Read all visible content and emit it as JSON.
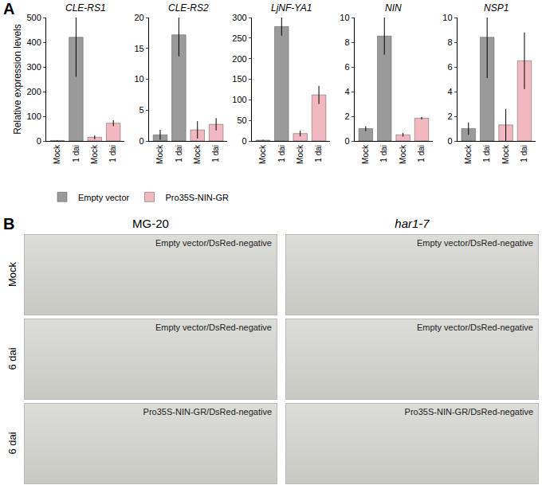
{
  "panel_a_label": "A",
  "chart_data": [
    {
      "type": "bar",
      "title": "CLE-RS1",
      "y_label": "Relative expression levels",
      "legend": "bottom",
      "categories": [
        "Mock",
        "1 dai",
        "Mock",
        "1 dai"
      ],
      "series": [
        {
          "name": "Empty vector",
          "color": "#9a9a9a",
          "values": [
            2,
            420,
            null,
            null
          ],
          "errors": [
            1,
            160,
            null,
            null
          ]
        },
        {
          "name": "Pro35S-NIN-GR",
          "color": "#f2b8c0",
          "values": [
            null,
            null,
            15,
            72
          ],
          "errors": [
            null,
            null,
            8,
            12
          ]
        }
      ],
      "ylim": [
        0,
        500
      ],
      "yticks": [
        0,
        100,
        200,
        300,
        400,
        500
      ]
    },
    {
      "type": "bar",
      "title": "CLE-RS2",
      "categories": [
        "Mock",
        "1 dai",
        "Mock",
        "1 dai"
      ],
      "series": [
        {
          "name": "Empty vector",
          "color": "#9a9a9a",
          "values": [
            1,
            17.2,
            null,
            null
          ],
          "errors": [
            0.8,
            3.5,
            null,
            null
          ]
        },
        {
          "name": "Pro35S-NIN-GR",
          "color": "#f2b8c0",
          "values": [
            null,
            null,
            1.8,
            2.7
          ],
          "errors": [
            null,
            null,
            1.4,
            1
          ]
        }
      ],
      "ylim": [
        0,
        20
      ],
      "yticks": [
        0,
        5,
        10,
        15,
        20
      ]
    },
    {
      "type": "bar",
      "title": "LjNF-YA1",
      "categories": [
        "Mock",
        "1 dai",
        "Mock",
        "1 dai"
      ],
      "series": [
        {
          "name": "Empty vector",
          "color": "#9a9a9a",
          "values": [
            2,
            278,
            null,
            null
          ],
          "errors": [
            1,
            22,
            null,
            null
          ]
        },
        {
          "name": "Pro35S-NIN-GR",
          "color": "#f2b8c0",
          "values": [
            null,
            null,
            18,
            112
          ],
          "errors": [
            null,
            null,
            7,
            22
          ]
        }
      ],
      "ylim": [
        0,
        300
      ],
      "yticks": [
        0,
        50,
        100,
        150,
        200,
        250,
        300
      ]
    },
    {
      "type": "bar",
      "title": "NIN",
      "categories": [
        "Mock",
        "1 dai",
        "Mock",
        "1 dai"
      ],
      "series": [
        {
          "name": "Empty vector",
          "color": "#9a9a9a",
          "values": [
            1,
            8.5,
            null,
            null
          ],
          "errors": [
            0.2,
            1.5,
            null,
            null
          ]
        },
        {
          "name": "Pro35S-NIN-GR",
          "color": "#f2b8c0",
          "values": [
            null,
            null,
            0.5,
            1.85
          ],
          "errors": [
            null,
            null,
            0.15,
            0.1
          ]
        }
      ],
      "ylim": [
        0,
        10
      ],
      "yticks": [
        0,
        2,
        4,
        6,
        8,
        10
      ]
    },
    {
      "type": "bar",
      "title": "NSP1",
      "categories": [
        "Mock",
        "1 dai",
        "Mock",
        "1 dai"
      ],
      "series": [
        {
          "name": "Empty vector",
          "color": "#9a9a9a",
          "values": [
            1,
            8.4,
            null,
            null
          ],
          "errors": [
            0.5,
            3.3,
            null,
            null
          ]
        },
        {
          "name": "Pro35S-NIN-GR",
          "color": "#f2b8c0",
          "values": [
            null,
            null,
            1.3,
            6.5
          ],
          "errors": [
            null,
            null,
            1.3,
            2.3
          ]
        }
      ],
      "ylim": [
        0,
        10
      ],
      "yticks": [
        0,
        2,
        4,
        6,
        8,
        10
      ]
    }
  ],
  "panel_b": {
    "label": "B",
    "columns": [
      "MG-20",
      "har1-7"
    ],
    "rows": [
      {
        "label": "Mock",
        "cells": [
          "Empty vector/DsRed-negative",
          "Empty vector/DsRed-negative"
        ]
      },
      {
        "label": "6 dai",
        "cells": [
          "Empty vector/DsRed-negative",
          "Empty vector/DsRed-negative"
        ]
      },
      {
        "label": "6 dai",
        "cells": [
          "Pro35S-NIN-GR/DsRed-negative",
          "Pro35S-NIN-GR/DsRed-negative"
        ]
      }
    ]
  }
}
